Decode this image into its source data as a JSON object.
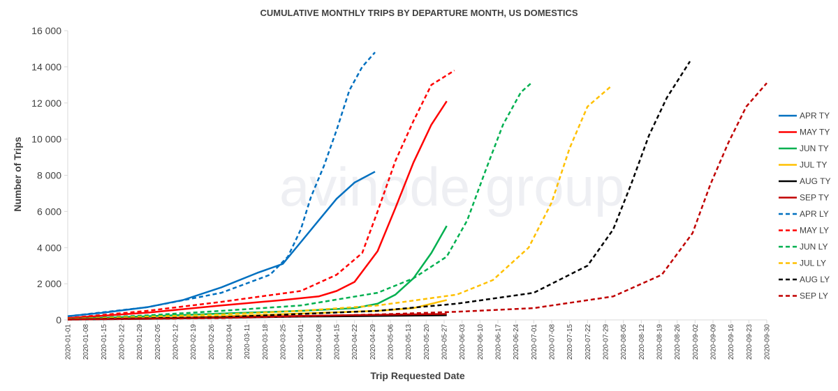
{
  "chart_data": {
    "type": "line",
    "title": "CUMULATIVE MONTHLY TRIPS BY DEPARTURE MONTH, US DOMESTICS",
    "xlabel": "Trip Requested Date",
    "ylabel": "Number of Trips",
    "ylim": [
      0,
      16000
    ],
    "xlim": [
      "2020-01-01",
      "2020-09-30"
    ],
    "yticks": [
      "0",
      "2 000",
      "4 000",
      "6 000",
      "8 000",
      "10 000",
      "12 000",
      "14 000",
      "16 000"
    ],
    "yticks_values": [
      0,
      2000,
      4000,
      6000,
      8000,
      10000,
      12000,
      14000,
      16000
    ],
    "xticks": [
      "2020-01-01",
      "2020-01-08",
      "2020-01-15",
      "2020-01-22",
      "2020-01-29",
      "2020-02-05",
      "2020-02-12",
      "2020-02-19",
      "2020-02-26",
      "2020-03-04",
      "2020-03-11",
      "2020-03-18",
      "2020-03-25",
      "2020-04-01",
      "2020-04-08",
      "2020-04-15",
      "2020-04-22",
      "2020-04-29",
      "2020-05-06",
      "2020-05-13",
      "2020-05-20",
      "2020-05-27",
      "2020-06-03",
      "2020-06-10",
      "2020-06-17",
      "2020-06-24",
      "2020-07-01",
      "2020-07-08",
      "2020-07-15",
      "2020-07-22",
      "2020-07-29",
      "2020-08-05",
      "2020-08-12",
      "2020-08-19",
      "2020-08-26",
      "2020-09-02",
      "2020-09-09",
      "2020-09-16",
      "2020-09-23",
      "2020-09-30"
    ],
    "grid": false,
    "legend": "right",
    "watermark": "avinode group",
    "series": [
      {
        "name": "APR TY",
        "color": "#0070c0",
        "dash": false,
        "x": [
          "2020-01-01",
          "2020-01-15",
          "2020-02-01",
          "2020-02-15",
          "2020-03-01",
          "2020-03-15",
          "2020-03-25",
          "2020-04-01",
          "2020-04-08",
          "2020-04-15",
          "2020-04-22",
          "2020-04-30"
        ],
        "y": [
          200,
          400,
          700,
          1100,
          1800,
          2600,
          3100,
          4300,
          5500,
          6700,
          7600,
          8200
        ]
      },
      {
        "name": "MAY TY",
        "color": "#ff0000",
        "dash": false,
        "x": [
          "2020-01-01",
          "2020-02-01",
          "2020-03-01",
          "2020-03-25",
          "2020-04-08",
          "2020-04-15",
          "2020-04-22",
          "2020-05-01",
          "2020-05-08",
          "2020-05-15",
          "2020-05-22",
          "2020-05-28"
        ],
        "y": [
          100,
          400,
          800,
          1100,
          1300,
          1600,
          2100,
          3800,
          6200,
          8700,
          10800,
          12100
        ]
      },
      {
        "name": "JUN TY",
        "color": "#00b050",
        "dash": false,
        "x": [
          "2020-01-01",
          "2020-02-01",
          "2020-03-01",
          "2020-04-01",
          "2020-04-22",
          "2020-05-01",
          "2020-05-08",
          "2020-05-15",
          "2020-05-22",
          "2020-05-28"
        ],
        "y": [
          50,
          200,
          350,
          500,
          650,
          900,
          1400,
          2300,
          3700,
          5200
        ]
      },
      {
        "name": "JUL TY",
        "color": "#ffc000",
        "dash": false,
        "x": [
          "2020-01-01",
          "2020-02-01",
          "2020-03-01",
          "2020-04-01",
          "2020-05-01",
          "2020-05-15",
          "2020-05-28"
        ],
        "y": [
          30,
          100,
          200,
          350,
          500,
          650,
          1100
        ]
      },
      {
        "name": "AUG TY",
        "color": "#000000",
        "dash": false,
        "x": [
          "2020-01-01",
          "2020-02-01",
          "2020-03-01",
          "2020-04-01",
          "2020-05-01",
          "2020-05-28"
        ],
        "y": [
          20,
          60,
          120,
          180,
          220,
          260
        ]
      },
      {
        "name": "SEP TY",
        "color": "#c00000",
        "dash": false,
        "x": [
          "2020-01-01",
          "2020-02-01",
          "2020-03-01",
          "2020-04-01",
          "2020-05-01",
          "2020-05-28"
        ],
        "y": [
          30,
          80,
          150,
          220,
          280,
          330
        ]
      },
      {
        "name": "APR LY",
        "color": "#0070c0",
        "dash": true,
        "x": [
          "2020-01-01",
          "2020-02-01",
          "2020-03-01",
          "2020-03-20",
          "2020-03-27",
          "2020-04-01",
          "2020-04-05",
          "2020-04-10",
          "2020-04-15",
          "2020-04-20",
          "2020-04-25",
          "2020-04-30"
        ],
        "y": [
          200,
          700,
          1500,
          2500,
          3500,
          5000,
          6800,
          8500,
          10500,
          12700,
          14000,
          14800
        ]
      },
      {
        "name": "MAY LY",
        "color": "#ff0000",
        "dash": true,
        "x": [
          "2020-01-01",
          "2020-02-01",
          "2020-03-01",
          "2020-04-01",
          "2020-04-15",
          "2020-04-25",
          "2020-05-01",
          "2020-05-08",
          "2020-05-15",
          "2020-05-22",
          "2020-05-31"
        ],
        "y": [
          100,
          500,
          1000,
          1600,
          2500,
          3700,
          6000,
          8800,
          11000,
          13000,
          13800
        ]
      },
      {
        "name": "JUN LY",
        "color": "#00b050",
        "dash": true,
        "x": [
          "2020-01-01",
          "2020-02-01",
          "2020-03-01",
          "2020-04-01",
          "2020-05-01",
          "2020-05-15",
          "2020-05-28",
          "2020-06-05",
          "2020-06-12",
          "2020-06-19",
          "2020-06-26",
          "2020-06-30"
        ],
        "y": [
          50,
          250,
          500,
          800,
          1500,
          2300,
          3500,
          5500,
          8200,
          10800,
          12600,
          13100
        ]
      },
      {
        "name": "JUL LY",
        "color": "#ffc000",
        "dash": true,
        "x": [
          "2020-01-01",
          "2020-03-01",
          "2020-04-01",
          "2020-05-01",
          "2020-06-01",
          "2020-06-15",
          "2020-06-29",
          "2020-07-08",
          "2020-07-15",
          "2020-07-22",
          "2020-07-31"
        ],
        "y": [
          50,
          300,
          500,
          800,
          1400,
          2200,
          4000,
          6500,
          9500,
          11800,
          12900
        ]
      },
      {
        "name": "AUG LY",
        "color": "#000000",
        "dash": true,
        "x": [
          "2020-01-01",
          "2020-03-01",
          "2020-05-01",
          "2020-06-01",
          "2020-07-01",
          "2020-07-22",
          "2020-08-01",
          "2020-08-08",
          "2020-08-15",
          "2020-08-22",
          "2020-08-31"
        ],
        "y": [
          30,
          150,
          500,
          900,
          1500,
          3000,
          5000,
          7500,
          10200,
          12300,
          14300
        ]
      },
      {
        "name": "SEP LY",
        "color": "#c00000",
        "dash": true,
        "x": [
          "2020-01-01",
          "2020-03-01",
          "2020-05-01",
          "2020-06-01",
          "2020-07-01",
          "2020-08-01",
          "2020-08-20",
          "2020-09-01",
          "2020-09-08",
          "2020-09-15",
          "2020-09-22",
          "2020-09-30"
        ],
        "y": [
          20,
          100,
          300,
          450,
          650,
          1300,
          2500,
          4800,
          7500,
          9800,
          11800,
          13100
        ]
      }
    ]
  }
}
